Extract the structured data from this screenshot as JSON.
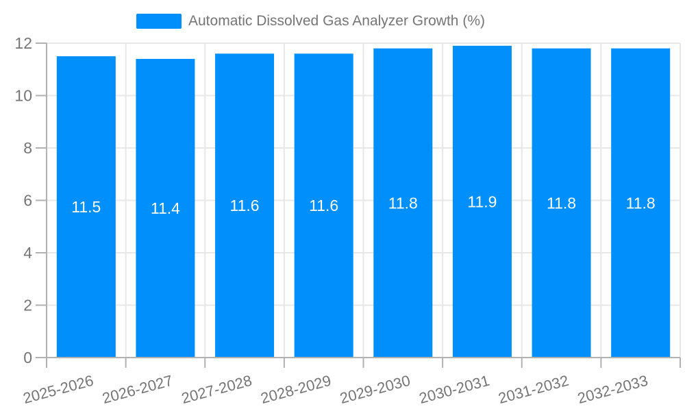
{
  "chart_data": {
    "type": "bar",
    "title": "Automatic Dissolved Gas Analyzer Growth (%)",
    "categories": [
      "2025-2026",
      "2026-2027",
      "2027-2028",
      "2028-2029",
      "2029-2030",
      "2030-2031",
      "2031-2032",
      "2032-2033"
    ],
    "values": [
      11.5,
      11.4,
      11.6,
      11.6,
      11.8,
      11.9,
      11.8,
      11.8
    ],
    "bar_labels": [
      "11.5",
      "11.4",
      "11.6",
      "11.6",
      "11.8",
      "11.9",
      "11.8",
      "11.8"
    ],
    "series": [
      {
        "name": "Automatic Dissolved Gas Analyzer Growth (%)",
        "values": [
          11.5,
          11.4,
          11.6,
          11.6,
          11.8,
          11.9,
          11.8,
          11.8
        ]
      }
    ],
    "xlabel": "",
    "ylabel": "",
    "ylim": [
      0,
      12
    ],
    "yticks": [
      0,
      2,
      4,
      6,
      8,
      10,
      12
    ],
    "grid": true,
    "legend_position": "top",
    "x_label_rotation_deg": -15,
    "colors": {
      "bar": "#008FFB",
      "bar_label": "#ffffff",
      "axis_text": "#757575",
      "legend_text": "#757575",
      "grid_line": "#e7e7e7",
      "axis_line": "#b1b1b1",
      "background": "#ffffff"
    }
  }
}
